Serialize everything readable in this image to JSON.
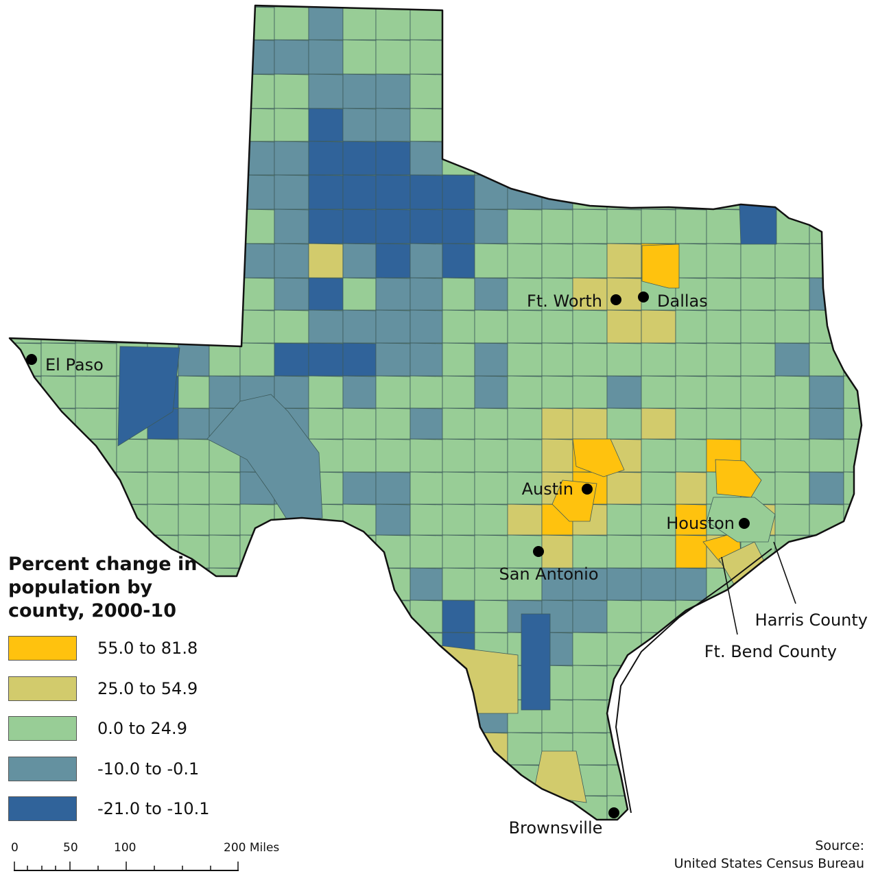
{
  "title": "Percent change in population by county, 2000-10",
  "colors": {
    "class_1": "#FFC20E",
    "class_2": "#D2CB6C",
    "class_3": "#98CD96",
    "class_4": "#6491A0",
    "class_5": "#30639A",
    "county_border": "#3c5a5a",
    "state_border": "#111111"
  },
  "legend": [
    {
      "label": "55.0 to 81.8",
      "color_key": "class_1"
    },
    {
      "label": "25.0 to 54.9",
      "color_key": "class_2"
    },
    {
      "label": "0.0 to 24.9",
      "color_key": "class_3"
    },
    {
      "label": "-10.0 to -0.1",
      "color_key": "class_4"
    },
    {
      "label": "-21.0 to -10.1",
      "color_key": "class_5"
    }
  ],
  "cities": [
    {
      "name": "El Paso"
    },
    {
      "name": "Ft. Worth"
    },
    {
      "name": "Dallas"
    },
    {
      "name": "Austin"
    },
    {
      "name": "Houston"
    },
    {
      "name": "San Antonio"
    },
    {
      "name": "Brownsville"
    }
  ],
  "callouts": [
    {
      "label": "Harris County"
    },
    {
      "label": "Ft. Bend County"
    }
  ],
  "scale_bar": {
    "labels": [
      "0",
      "50",
      "100",
      "200 Miles"
    ]
  },
  "source": {
    "line1": "Source:",
    "line2": "United States Census Bureau"
  }
}
